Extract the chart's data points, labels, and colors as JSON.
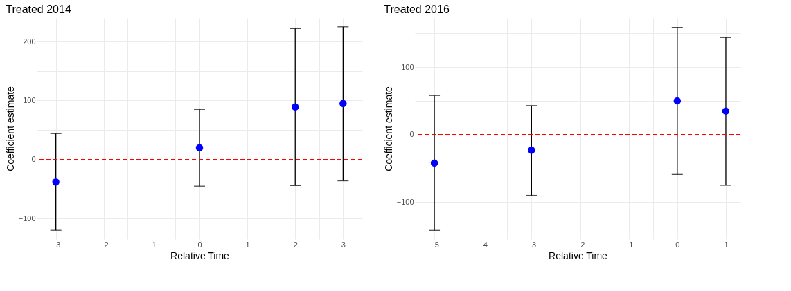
{
  "chart_data": [
    {
      "type": "scatter",
      "title": "Treated 2014",
      "xlabel": "Relative Time",
      "ylabel": "Coefficient estimate",
      "x": [
        -3,
        0,
        2,
        3
      ],
      "series": [
        {
          "color": "#0000ff",
          "values": [
            -38,
            20,
            89,
            95
          ],
          "errors": [
            [
              -120,
              44
            ],
            [
              -45,
              85
            ],
            [
              -44,
              222
            ],
            [
              -36,
              225
            ]
          ]
        }
      ],
      "xlim": [
        -3.4,
        3.4
      ],
      "ylim": [
        -135,
        240
      ],
      "xticks": [
        -3,
        {
          "value": -2.5,
          "label": null
        },
        -2,
        {
          "value": -1.5,
          "label": null
        },
        -1,
        {
          "value": -0.5,
          "label": null
        },
        0,
        {
          "value": 0.5,
          "label": null
        },
        1,
        {
          "value": 1.5,
          "label": null
        },
        2,
        {
          "value": 2.5,
          "label": null
        },
        3
      ],
      "yticks": [
        -100,
        {
          "value": -50,
          "label": null
        },
        0,
        {
          "value": 50,
          "label": null
        },
        100,
        {
          "value": 150,
          "label": null
        },
        200
      ],
      "ref_lines": [
        {
          "axis": "y",
          "value": 0,
          "color": "#ff0000",
          "line_style": "dashed"
        }
      ],
      "grid": true,
      "marker": "circle"
    },
    {
      "type": "scatter",
      "title": "Treated 2016",
      "xlabel": "Relative Time",
      "ylabel": "Coefficient estimate",
      "x": [
        -5,
        -3,
        0,
        1
      ],
      "series": [
        {
          "color": "#0000ff",
          "values": [
            -42,
            -23,
            50,
            35
          ],
          "errors": [
            [
              -142,
              58
            ],
            [
              -90,
              43
            ],
            [
              -59,
              159
            ],
            [
              -75,
              144
            ]
          ]
        }
      ],
      "xlim": [
        -5.4,
        1.3
      ],
      "ylim": [
        -155,
        173
      ],
      "xticks": [
        -5,
        {
          "value": -4.5,
          "label": null
        },
        -4,
        {
          "value": -3.5,
          "label": null
        },
        -3,
        {
          "value": -2.5,
          "label": null
        },
        -2,
        {
          "value": -1.5,
          "label": null
        },
        -1,
        {
          "value": -0.5,
          "label": null
        },
        0,
        {
          "value": 0.5,
          "label": null
        },
        1
      ],
      "yticks": [
        {
          "value": -150,
          "label": null
        },
        -100,
        {
          "value": -50,
          "label": null
        },
        0,
        {
          "value": 50,
          "label": null
        },
        100,
        {
          "value": 150,
          "label": null
        }
      ],
      "ref_lines": [
        {
          "axis": "y",
          "value": 0,
          "color": "#ff0000",
          "line_style": "dashed"
        }
      ],
      "grid": true,
      "marker": "circle"
    }
  ]
}
